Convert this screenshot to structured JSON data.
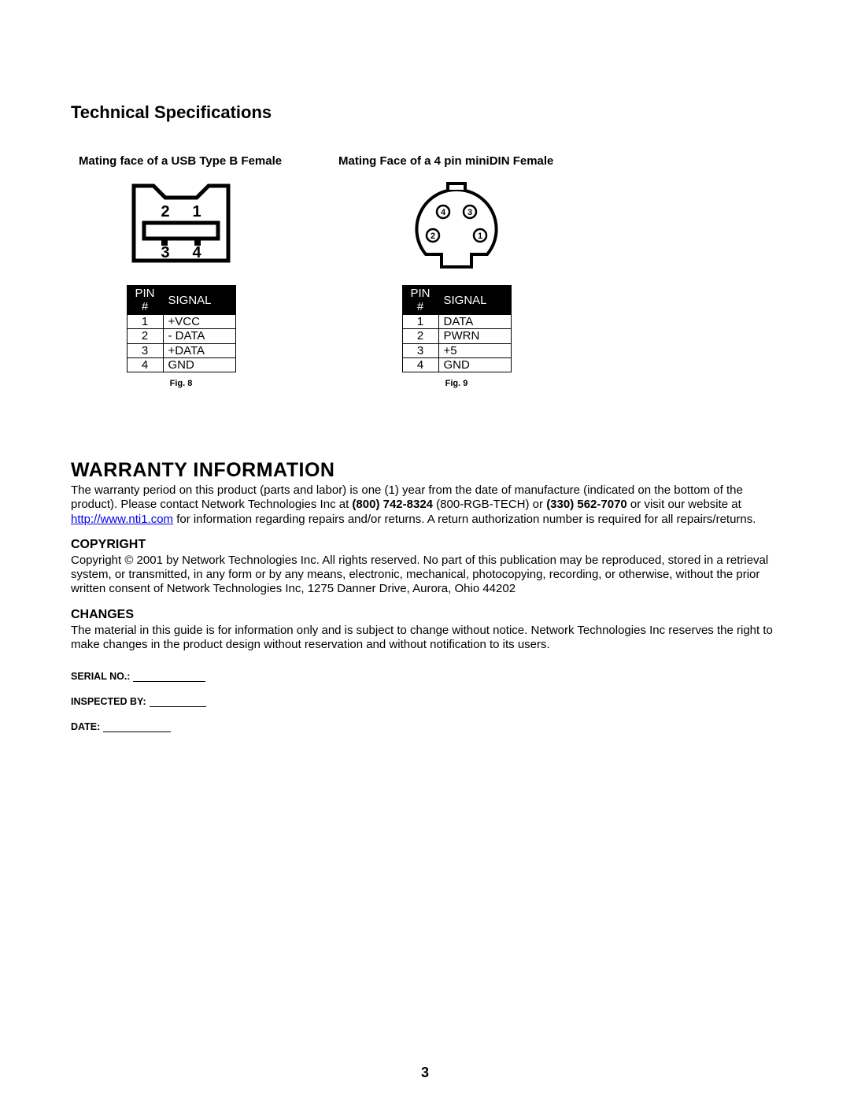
{
  "tech_title": "Technical Specifications",
  "usb": {
    "title": "Mating face of a USB Type B Female",
    "labels": {
      "n1": "1",
      "n2": "2",
      "n3": "3",
      "n4": "4"
    },
    "table": {
      "headers": {
        "pin": "PIN #",
        "sig": "SIGNAL"
      },
      "rows": [
        {
          "pin": "1",
          "sig": "+VCC"
        },
        {
          "pin": "2",
          "sig": " - DATA"
        },
        {
          "pin": "3",
          "sig": "+DATA"
        },
        {
          "pin": "4",
          "sig": "GND"
        }
      ]
    },
    "caption": "Fig. 8"
  },
  "minidin": {
    "title": "Mating Face of a 4 pin miniDIN  Female",
    "labels": {
      "n1": "1",
      "n2": "2",
      "n3": "3",
      "n4": "4"
    },
    "table": {
      "headers": {
        "pin": "PIN #",
        "sig": "SIGNAL"
      },
      "rows": [
        {
          "pin": "1",
          "sig": "DATA"
        },
        {
          "pin": "2",
          "sig": "PWRN"
        },
        {
          "pin": "3",
          "sig": "+5"
        },
        {
          "pin": "4",
          "sig": "GND"
        }
      ]
    },
    "caption": "Fig. 9"
  },
  "warranty": {
    "heading": "WARRANTY INFORMATION",
    "para_a": "The warranty period on this product (parts and labor) is one (1) year from the date of manufacture (indicated on the bottom of the product).  Please contact Network Technologies Inc at ",
    "phone1": "(800) 742-8324",
    "para_b": "  (800-RGB-TECH) or ",
    "phone2": "(330) 562-7070",
    "para_c": " or visit our website at ",
    "link_text": "http://www.nti1.com",
    "link_href": "http://www.nti1.com",
    "para_d": " for information regarding repairs and/or returns.  A return authorization number is required for all repairs/returns."
  },
  "copyright": {
    "heading": "COPYRIGHT",
    "text": "Copyright © 2001 by Network Technologies Inc.  All rights reserved.  No part of this publication may be reproduced, stored in a retrieval system, or transmitted, in any form or by any means, electronic, mechanical, photocopying, recording, or otherwise, without the prior written consent of Network Technologies Inc, 1275 Danner Drive, Aurora, Ohio 44202"
  },
  "changes": {
    "heading": "CHANGES",
    "text": "The material in this guide is for information only and is subject to change without notice.  Network Technologies Inc reserves the right to make changes in the product design without reservation and without notification to its users."
  },
  "form": {
    "serial": "SERIAL NO.:",
    "inspected": "INSPECTED BY:",
    "date": "DATE:"
  },
  "page_number": "3",
  "style": {
    "colors": {
      "text": "#000000",
      "background": "#ffffff",
      "link": "#0000ee",
      "table_header_bg": "#000000",
      "table_header_fg": "#ffffff",
      "border": "#000000"
    },
    "underline_widths": {
      "serial": 92,
      "inspected": 72,
      "date": 86
    }
  }
}
